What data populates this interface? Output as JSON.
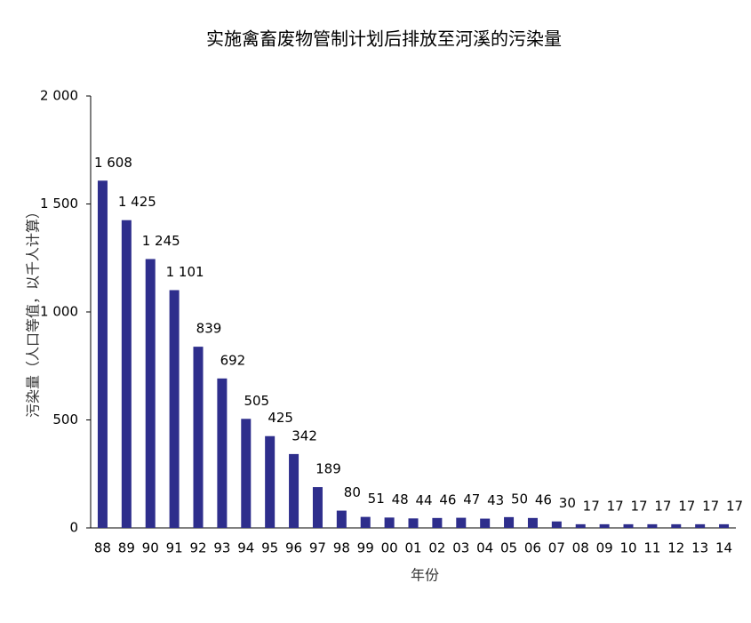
{
  "chart_data": {
    "type": "bar",
    "title": "实施禽畜废物管制计划后排放至河溪的污染量",
    "x_label": "年份",
    "y_label": "污染量（人口等值，以千人计算）",
    "categories": [
      "88",
      "89",
      "90",
      "91",
      "92",
      "93",
      "94",
      "95",
      "96",
      "97",
      "98",
      "99",
      "00",
      "01",
      "02",
      "03",
      "04",
      "05",
      "06",
      "07",
      "08",
      "09",
      "10",
      "11",
      "12",
      "13",
      "14"
    ],
    "values": [
      1608,
      1425,
      1245,
      1101,
      839,
      692,
      505,
      425,
      342,
      189,
      80,
      51,
      48,
      44,
      46,
      47,
      43,
      50,
      46,
      30,
      17,
      17,
      17,
      17,
      17,
      17,
      17
    ],
    "value_labels": [
      "1 608",
      "1 425",
      "1 245",
      "1 101",
      "839",
      "692",
      "505",
      "425",
      "342",
      "189",
      "80",
      "51",
      "48",
      "44",
      "46",
      "47",
      "43",
      "50",
      "46",
      "30",
      "17",
      "17",
      "17",
      "17",
      "17",
      "17",
      "17"
    ],
    "color": "#2e2e8c",
    "ylim": [
      0,
      2000
    ],
    "yticks": [
      0,
      500,
      {
        "value": 1000,
        "label": "1 000"
      },
      {
        "value": 1500,
        "label": "1 500"
      },
      {
        "value": 2000,
        "label": "2 000"
      }
    ]
  }
}
